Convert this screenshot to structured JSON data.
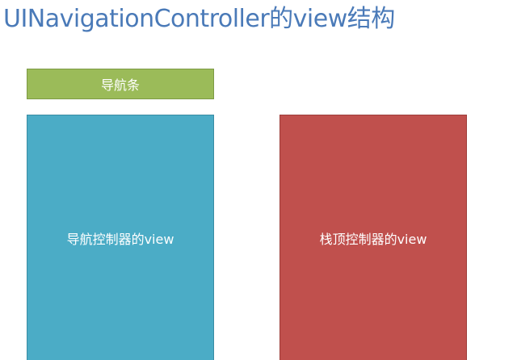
{
  "diagram": {
    "title": "UINavigationController的view结构",
    "nodes": {
      "navigation_bar": {
        "label": "导航条",
        "color": "#9bbb59"
      },
      "navigation_controller_view": {
        "label": "导航控制器的view",
        "color": "#4bacc6"
      },
      "top_controller_view": {
        "label": "栈顶控制器的view",
        "color": "#c0504d"
      }
    }
  }
}
